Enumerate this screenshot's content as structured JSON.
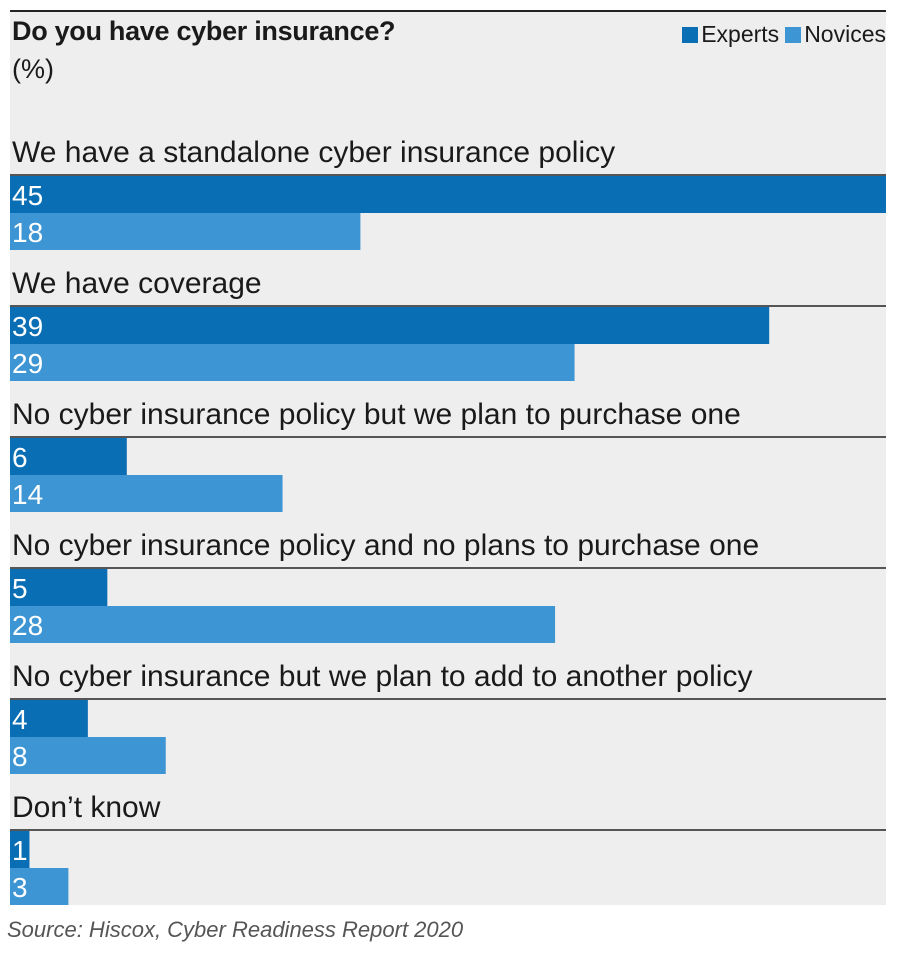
{
  "chart_data": {
    "type": "bar",
    "orientation": "horizontal",
    "title": "Do you have cyber insurance?",
    "unit_label": "(%)",
    "categories": [
      "We have a standalone cyber insurance policy",
      "We have coverage",
      "No cyber insurance policy but we plan to purchase one",
      "No cyber insurance policy and no plans to purchase one",
      "No cyber insurance but we plan to add to another policy",
      "Don’t know"
    ],
    "series": [
      {
        "name": "Experts",
        "color": "#0a6eb4",
        "values": [
          45,
          39,
          6,
          5,
          4,
          1
        ]
      },
      {
        "name": "Novices",
        "color": "#3d95d3",
        "values": [
          18,
          29,
          14,
          28,
          8,
          3
        ]
      }
    ],
    "xlim": [
      0,
      45
    ],
    "grid": false,
    "legend_position": "top-right"
  },
  "source": "Source: Hiscox, Cyber Readiness Report 2020"
}
